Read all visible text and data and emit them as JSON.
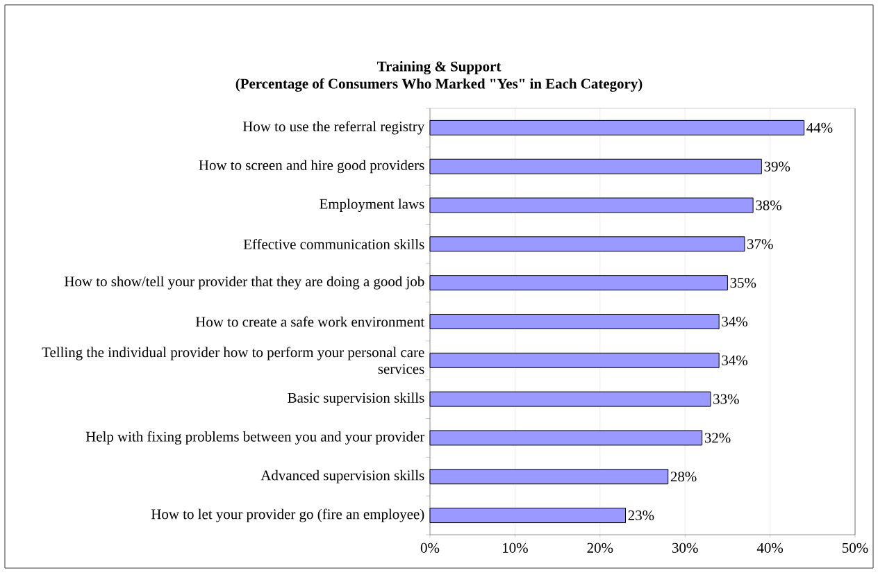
{
  "chart_data": {
    "type": "bar",
    "orientation": "horizontal",
    "title": "Training & Support",
    "subtitle": "(Percentage of Consumers Who Marked \"Yes\" in Each Category)",
    "categories": [
      "How to use the referral registry",
      "How to screen and hire good providers",
      "Employment laws",
      "Effective communication skills",
      "How to show/tell your provider that they are doing a good job",
      "How to create a safe work environment",
      "Telling the individual provider how to perform your personal care services",
      "Basic supervision skills",
      "Help with fixing problems between you and your provider",
      "Advanced supervision skills",
      "How to let your provider go (fire an employee)"
    ],
    "values": [
      44,
      39,
      38,
      37,
      35,
      34,
      34,
      33,
      32,
      28,
      23
    ],
    "value_labels": [
      "44%",
      "39%",
      "38%",
      "37%",
      "35%",
      "34%",
      "34%",
      "33%",
      "32%",
      "28%",
      "23%"
    ],
    "color": "#9999ff",
    "xlim": [
      0,
      50
    ],
    "xticks": [
      {
        "value": 0,
        "label": "0%"
      },
      {
        "value": 10,
        "label": "10%"
      },
      {
        "value": 20,
        "label": "20%"
      },
      {
        "value": 30,
        "label": "30%"
      },
      {
        "value": 40,
        "label": "40%"
      },
      {
        "value": 50,
        "label": "50%"
      }
    ],
    "grid": "x"
  }
}
